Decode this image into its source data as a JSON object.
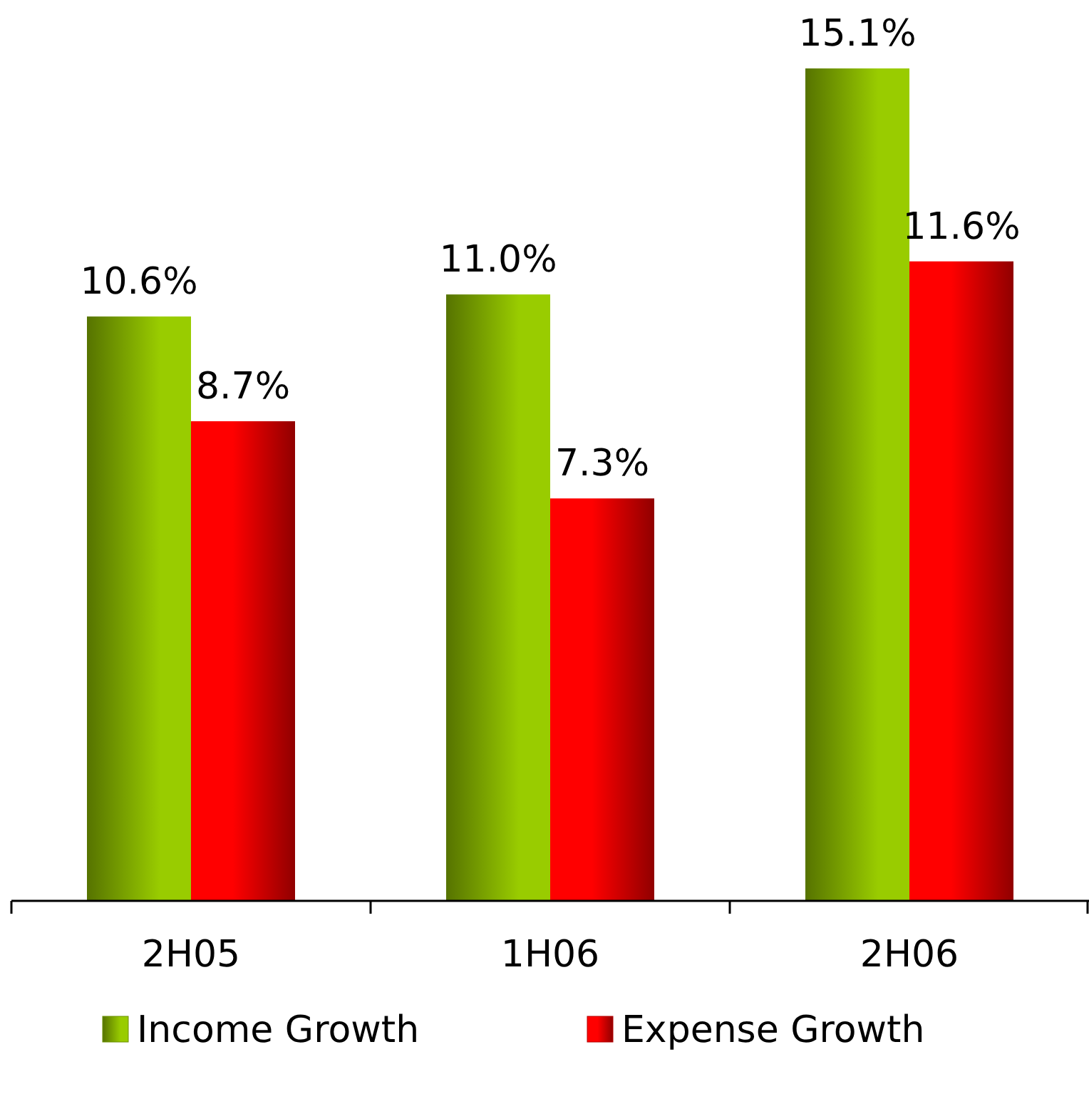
{
  "chart_data": {
    "type": "bar",
    "categories": [
      "2H05",
      "1H06",
      "2H06"
    ],
    "series": [
      {
        "name": "Income Growth",
        "color": "#99cc00",
        "values": [
          10.6,
          11.0,
          15.1
        ],
        "value_labels": [
          "10.6%",
          "11.0%",
          "15.1%"
        ]
      },
      {
        "name": "Expense Growth",
        "color": "#ff0000",
        "values": [
          8.7,
          7.3,
          11.6
        ],
        "value_labels": [
          "8.7%",
          "7.3%",
          "11.6%"
        ]
      }
    ],
    "legend": "bottom"
  }
}
